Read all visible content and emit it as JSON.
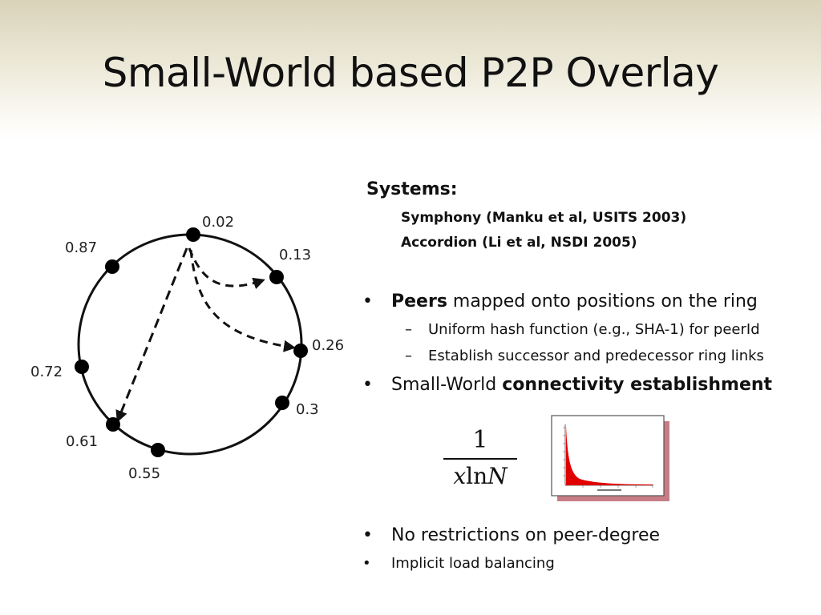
{
  "slide": {
    "title": "Small-World based P2P Overlay"
  },
  "ring": {
    "nodes": [
      {
        "label": "0.02"
      },
      {
        "label": "0.13"
      },
      {
        "label": "0.26"
      },
      {
        "label": "0.3"
      },
      {
        "label": "0.55"
      },
      {
        "label": "0.61"
      },
      {
        "label": "0.72"
      },
      {
        "label": "0.87"
      }
    ]
  },
  "systems": {
    "heading": "Systems:",
    "items": [
      "Symphony (Manku et al, USITS 2003)",
      "Accordion (Li et al, NSDI 2005)"
    ]
  },
  "bullets": {
    "peers_bold": "Peers",
    "peers_rest": " mapped onto positions on the ring",
    "sub1": "Uniform hash function (e.g., SHA-1) for peerId",
    "sub2": "Establish successor and predecessor ring links",
    "smallworld_plain": "Small-World ",
    "smallworld_bold": "connectivity establishment",
    "restrictions": "No restrictions on peer-degree",
    "load_balancing": "Implicit load balancing",
    "bullet_symbol": "•",
    "dash_symbol": "–"
  },
  "formula": {
    "numerator": "1",
    "var_x": "x",
    "ln": "ln",
    "var_n": "N"
  },
  "colors": {
    "header_gradient_top": "#d9d3b9",
    "curve_fill": "#e00000",
    "frame_shadow": "#c77d86"
  }
}
